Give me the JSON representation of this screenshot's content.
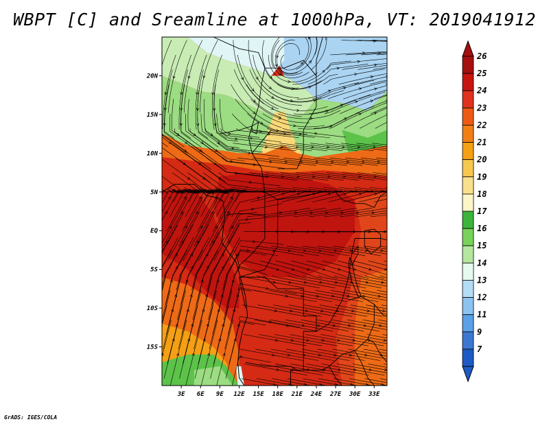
{
  "title": "WBPT [C] and Sreamline at 1000hPa, VT: 2019041912",
  "credit": "GrADS: IGES/COLA",
  "map": {
    "lat_labels": [
      {
        "lat": 20,
        "label": "20N"
      },
      {
        "lat": 15,
        "label": "15N"
      },
      {
        "lat": 10,
        "label": "10N"
      },
      {
        "lat": 5,
        "label": "5N"
      },
      {
        "lat": 0,
        "label": "EQ"
      },
      {
        "lat": -5,
        "label": "5S"
      },
      {
        "lat": -10,
        "label": "10S"
      },
      {
        "lat": -15,
        "label": "15S"
      }
    ],
    "lon_labels": [
      {
        "lon": 3,
        "label": "3E"
      },
      {
        "lon": 6,
        "label": "6E"
      },
      {
        "lon": 9,
        "label": "9E"
      },
      {
        "lon": 12,
        "label": "12E"
      },
      {
        "lon": 15,
        "label": "15E"
      },
      {
        "lon": 18,
        "label": "18E"
      },
      {
        "lon": 21,
        "label": "21E"
      },
      {
        "lon": 24,
        "label": "24E"
      },
      {
        "lon": 27,
        "label": "27E"
      },
      {
        "lon": 30,
        "label": "30E"
      },
      {
        "lon": 33,
        "label": "33E"
      }
    ],
    "lon_range": [
      0,
      35
    ],
    "lat_range": [
      -20,
      25
    ]
  },
  "colorbar": {
    "levels": [
      {
        "label": "26",
        "color": "#a50f0f"
      },
      {
        "label": "25",
        "color": "#c8140f"
      },
      {
        "label": "24",
        "color": "#e0321e"
      },
      {
        "label": "23",
        "color": "#ee5a14"
      },
      {
        "label": "22",
        "color": "#f07f14"
      },
      {
        "label": "21",
        "color": "#f5a014"
      },
      {
        "label": "20",
        "color": "#f7c850"
      },
      {
        "label": "19",
        "color": "#f8e08c"
      },
      {
        "label": "18",
        "color": "#fcf5c8"
      },
      {
        "label": "17",
        "color": "#3cb43c"
      },
      {
        "label": "16",
        "color": "#78d25a"
      },
      {
        "label": "15",
        "color": "#b4e6a0"
      },
      {
        "label": "14",
        "color": "#e6faf0"
      },
      {
        "label": "13",
        "color": "#b4dcf5"
      },
      {
        "label": "12",
        "color": "#8cc3f0"
      },
      {
        "label": "11",
        "color": "#5aa0e6"
      },
      {
        "label": "9",
        "color": "#3c78d2"
      },
      {
        "label": "7",
        "color": "#1e5ac3"
      }
    ],
    "top_color": "#a50f0f",
    "bottom_color": "#1e5ac3"
  },
  "field_colors": {
    "deep_red": "#c0140f",
    "red": "#d52a14",
    "orange_red": "#e0461a",
    "orange": "#ee6a16",
    "light_orange": "#f5a014",
    "yellow": "#f8d878",
    "pale_yellow": "#fcf0b4",
    "green": "#5cc24a",
    "light_green": "#9cdc82",
    "pale_green": "#c8ecb4",
    "pale_blue": "#e0f5f5",
    "light_blue": "#aad4f2",
    "blue": "#8cc0ee"
  }
}
